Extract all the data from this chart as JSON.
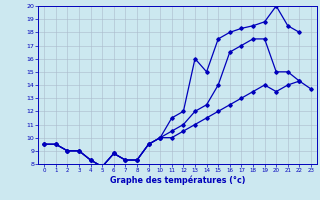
{
  "xlabel": "Graphe des températures (°c)",
  "line_color": "#0000bb",
  "bg_color": "#cce8f0",
  "grid_color": "#aabbcc",
  "xlim": [
    -0.5,
    23.5
  ],
  "ylim": [
    8,
    20
  ],
  "yticks": [
    8,
    9,
    10,
    11,
    12,
    13,
    14,
    15,
    16,
    17,
    18,
    19,
    20
  ],
  "top_x": [
    0,
    1,
    2,
    3,
    4,
    5,
    6,
    7,
    8,
    9,
    10,
    11,
    12,
    13,
    14,
    15,
    16,
    17,
    18,
    19,
    20,
    21,
    22
  ],
  "top_y": [
    9.5,
    9.5,
    9.0,
    9.0,
    8.3,
    7.8,
    8.8,
    8.3,
    8.3,
    9.5,
    10.0,
    11.5,
    12.0,
    16.0,
    15.0,
    17.5,
    18.0,
    18.3,
    18.5,
    18.8,
    20.0,
    18.5,
    18.0
  ],
  "mid_x": [
    0,
    1,
    2,
    3,
    4,
    5,
    6,
    7,
    8,
    9,
    10,
    11,
    12,
    13,
    14,
    15,
    16,
    17,
    18,
    19,
    20,
    21,
    22
  ],
  "mid_y": [
    9.5,
    9.5,
    9.0,
    9.0,
    8.3,
    7.8,
    8.8,
    8.3,
    8.3,
    9.5,
    10.0,
    10.5,
    11.0,
    12.0,
    12.5,
    14.0,
    16.5,
    17.0,
    17.5,
    17.5,
    15.0,
    15.0,
    14.3
  ],
  "bot_x": [
    0,
    1,
    2,
    3,
    4,
    5,
    6,
    7,
    8,
    9,
    10,
    11,
    12,
    13,
    14,
    15,
    16,
    17,
    18,
    19,
    20,
    21,
    22,
    23
  ],
  "bot_y": [
    9.5,
    9.5,
    9.0,
    9.0,
    8.3,
    7.8,
    8.8,
    8.3,
    8.3,
    9.5,
    10.0,
    10.0,
    10.5,
    11.0,
    11.5,
    12.0,
    12.5,
    13.0,
    13.5,
    14.0,
    13.5,
    14.0,
    14.3,
    13.7
  ]
}
